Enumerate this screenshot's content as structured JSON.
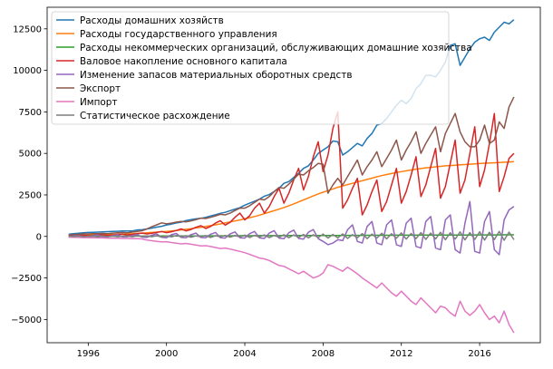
{
  "chart_data": {
    "type": "line",
    "title": "",
    "xlabel": "",
    "ylabel": "",
    "x_start": 1995.0,
    "x_step": 0.25,
    "xlim": [
      1993.9,
      2019.1
    ],
    "ylim": [
      -6400,
      13800
    ],
    "xticks": [
      1996,
      2000,
      2004,
      2008,
      2012,
      2016
    ],
    "yticks": [
      -5000,
      -2500,
      0,
      2500,
      5000,
      7500,
      10000,
      12500
    ],
    "legend_position": "upper-left",
    "grid": false,
    "series": [
      {
        "name": "Расходы домашних хозяйств",
        "color": "#1f77b4",
        "values": [
          130,
          170,
          190,
          220,
          240,
          250,
          260,
          275,
          290,
          305,
          310,
          330,
          330,
          330,
          390,
          400,
          450,
          500,
          560,
          610,
          690,
          740,
          810,
          860,
          960,
          1010,
          1060,
          1090,
          1150,
          1230,
          1310,
          1390,
          1450,
          1550,
          1640,
          1730,
          1880,
          2000,
          2120,
          2240,
          2420,
          2520,
          2700,
          2900,
          3200,
          3300,
          3550,
          3800,
          4100,
          4250,
          4600,
          5000,
          5200,
          5400,
          5750,
          5700,
          4900,
          5100,
          5350,
          5600,
          5450,
          5900,
          6200,
          6700,
          6800,
          7100,
          7500,
          7900,
          8200,
          8000,
          8300,
          8900,
          9200,
          9700,
          9700,
          9600,
          10000,
          10500,
          11500,
          11600,
          10300,
          10800,
          11300,
          11700,
          11900,
          12000,
          11800,
          12300,
          12600,
          12900,
          12800,
          13050
        ]
      },
      {
        "name": "Расходы государственного управления",
        "color": "#ff7f0e",
        "values": [
          40,
          50,
          60,
          70,
          80,
          90,
          95,
          100,
          110,
          120,
          130,
          140,
          155,
          170,
          185,
          200,
          220,
          240,
          260,
          280,
          300,
          330,
          360,
          390,
          430,
          470,
          510,
          550,
          600,
          650,
          700,
          750,
          810,
          870,
          930,
          990,
          1060,
          1130,
          1200,
          1280,
          1370,
          1460,
          1550,
          1640,
          1740,
          1850,
          1960,
          2080,
          2200,
          2320,
          2440,
          2560,
          2660,
          2760,
          2860,
          2960,
          3040,
          3120,
          3200,
          3280,
          3350,
          3430,
          3510,
          3590,
          3660,
          3730,
          3790,
          3850,
          3900,
          3950,
          4000,
          4050,
          4090,
          4130,
          4160,
          4190,
          4220,
          4250,
          4270,
          4290,
          4310,
          4330,
          4350,
          4370,
          4390,
          4410,
          4420,
          4430,
          4450,
          4470,
          4480,
          4500
        ]
      },
      {
        "name": "Расходы некоммерческих организаций, обслуживающих домашние хозяйства",
        "color": "#2ca02c",
        "values": [
          5,
          6,
          7,
          8,
          10,
          11,
          12,
          13,
          14,
          15,
          16,
          17,
          18,
          19,
          20,
          21,
          22,
          23,
          24,
          25,
          26,
          27,
          28,
          29,
          30,
          31,
          32,
          33,
          34,
          35,
          36,
          37,
          38,
          39,
          40,
          41,
          42,
          43,
          44,
          45,
          46,
          47,
          48,
          49,
          50,
          51,
          52,
          53,
          54,
          55,
          56,
          57,
          58,
          59,
          60,
          61,
          62,
          63,
          64,
          65,
          66,
          67,
          68,
          69,
          70,
          71,
          72,
          73,
          74,
          75,
          76,
          77,
          78,
          79,
          80,
          81,
          82,
          83,
          84,
          85,
          86,
          87,
          88,
          89,
          90,
          91,
          92,
          93,
          94,
          95,
          96,
          97
        ]
      },
      {
        "name": "Валовое накопление основного капитала",
        "color": "#d62728",
        "values": [
          30,
          40,
          60,
          70,
          40,
          60,
          80,
          100,
          60,
          80,
          110,
          140,
          90,
          120,
          160,
          200,
          150,
          190,
          240,
          300,
          220,
          280,
          360,
          450,
          330,
          420,
          550,
          650,
          480,
          600,
          800,
          950,
          680,
          850,
          1150,
          1400,
          1000,
          1250,
          1700,
          2000,
          1400,
          1800,
          2400,
          2900,
          2000,
          2600,
          3400,
          4100,
          2800,
          3600,
          4800,
          5700,
          3900,
          4900,
          6500,
          7500,
          1700,
          2200,
          2900,
          3500,
          1300,
          1900,
          2700,
          3400,
          1500,
          2100,
          3100,
          4100,
          2000,
          2700,
          3700,
          4800,
          2400,
          3100,
          4200,
          5300,
          2300,
          3000,
          4400,
          5800,
          2600,
          3400,
          5000,
          6600,
          3000,
          4000,
          5600,
          7400,
          2700,
          3600,
          4700,
          5000
        ]
      },
      {
        "name": "Изменение запасов материальных оборотных средств",
        "color": "#9467bd",
        "values": [
          -50,
          30,
          60,
          -20,
          -40,
          40,
          80,
          -30,
          -30,
          50,
          100,
          -30,
          -20,
          60,
          120,
          -40,
          -60,
          80,
          150,
          -50,
          -80,
          100,
          180,
          -60,
          -80,
          110,
          200,
          -60,
          -80,
          130,
          240,
          -70,
          -100,
          150,
          270,
          -80,
          -100,
          170,
          300,
          -90,
          -120,
          200,
          350,
          -100,
          -140,
          220,
          380,
          -120,
          -160,
          250,
          420,
          -130,
          -300,
          -500,
          -400,
          -200,
          -250,
          400,
          700,
          -300,
          -400,
          600,
          900,
          -400,
          -500,
          700,
          1000,
          -500,
          -600,
          800,
          1100,
          -600,
          -700,
          900,
          1200,
          -700,
          -800,
          1000,
          1300,
          -800,
          -1000,
          800,
          2100,
          -900,
          -1000,
          900,
          1500,
          -800,
          -1100,
          1000,
          1600,
          1800
        ]
      },
      {
        "name": "Экспорт",
        "color": "#8c564b",
        "values": [
          80,
          110,
          130,
          150,
          150,
          160,
          170,
          180,
          170,
          200,
          220,
          240,
          220,
          260,
          300,
          340,
          450,
          580,
          700,
          820,
          760,
          800,
          860,
          900,
          880,
          930,
          1010,
          1100,
          1080,
          1150,
          1240,
          1330,
          1300,
          1400,
          1560,
          1700,
          1700,
          1850,
          2050,
          2250,
          2200,
          2400,
          2700,
          2950,
          2900,
          3150,
          3450,
          3750,
          3700,
          3950,
          4150,
          4400,
          4350,
          2600,
          3100,
          3500,
          3100,
          3600,
          4100,
          4600,
          3700,
          4200,
          4600,
          5100,
          4200,
          4700,
          5200,
          5800,
          4600,
          5200,
          5700,
          6300,
          5000,
          5600,
          6100,
          6600,
          5100,
          6200,
          6800,
          7400,
          6300,
          5700,
          5400,
          5400,
          5800,
          6700,
          5600,
          5800,
          6900,
          6500,
          7800,
          8400
        ]
      },
      {
        "name": "Импорт",
        "color": "#e377c2",
        "values": [
          -40,
          -50,
          -60,
          -70,
          -70,
          -80,
          -90,
          -90,
          -100,
          -110,
          -110,
          -120,
          -120,
          -130,
          -140,
          -150,
          -220,
          -260,
          -300,
          -330,
          -320,
          -370,
          -410,
          -450,
          -420,
          -470,
          -520,
          -570,
          -560,
          -610,
          -670,
          -730,
          -700,
          -760,
          -830,
          -900,
          -980,
          -1080,
          -1190,
          -1300,
          -1350,
          -1450,
          -1600,
          -1750,
          -1800,
          -1950,
          -2100,
          -2250,
          -2100,
          -2300,
          -2500,
          -2400,
          -2200,
          -1700,
          -1800,
          -1950,
          -2100,
          -1850,
          -2050,
          -2250,
          -2500,
          -2700,
          -2900,
          -3100,
          -2800,
          -3100,
          -3400,
          -3600,
          -3300,
          -3600,
          -3900,
          -4100,
          -3700,
          -4000,
          -4300,
          -4600,
          -4200,
          -4300,
          -4600,
          -4800,
          -3900,
          -4500,
          -4750,
          -4500,
          -4100,
          -4600,
          -5000,
          -4800,
          -5200,
          -4500,
          -5300,
          -5800
        ]
      },
      {
        "name": "Статистическое расхождение",
        "color": "#7f7f7f",
        "values": [
          20,
          -10,
          30,
          -20,
          10,
          40,
          -30,
          20,
          -10,
          30,
          -20,
          10,
          20,
          -30,
          40,
          -10,
          30,
          -20,
          50,
          -40,
          20,
          -30,
          60,
          -20,
          40,
          -50,
          30,
          -10,
          50,
          -60,
          40,
          -20,
          60,
          -40,
          50,
          -30,
          80,
          -60,
          70,
          -40,
          90,
          -70,
          60,
          -50,
          100,
          -80,
          90,
          -60,
          120,
          -90,
          100,
          -70,
          140,
          -100,
          120,
          -90,
          150,
          -120,
          110,
          -80,
          170,
          -130,
          140,
          -100,
          190,
          -150,
          160,
          -110,
          210,
          -160,
          180,
          -130,
          230,
          -180,
          200,
          -150,
          250,
          -200,
          220,
          -160,
          270,
          -210,
          230,
          -180,
          280,
          -220,
          250,
          -190,
          300,
          -230,
          260,
          -200
        ]
      }
    ]
  }
}
